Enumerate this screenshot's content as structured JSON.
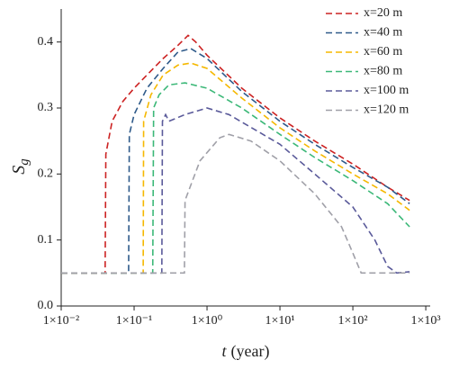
{
  "chart_data": {
    "type": "line",
    "ylabel": "S",
    "ylabel_subscript": "g",
    "xlabel_var": "t",
    "xlabel_unit": "(year)",
    "xscale": "log",
    "xlim": [
      0.01,
      1150
    ],
    "ylim": [
      0,
      0.45
    ],
    "xticks": [
      {
        "value": 0.01,
        "label": "1×10⁻²"
      },
      {
        "value": 0.1,
        "label": "1×10⁻¹"
      },
      {
        "value": 1,
        "label": "1×10⁰"
      },
      {
        "value": 10,
        "label": "1×10¹"
      },
      {
        "value": 100,
        "label": "1×10²"
      },
      {
        "value": 1000,
        "label": "1×10³"
      }
    ],
    "yticks": [
      {
        "value": 0,
        "label": "0.0"
      },
      0.1,
      0.2,
      0.3,
      0.4
    ],
    "legend": "top-right",
    "series": [
      {
        "name": "x=20 m",
        "color": "#cc2222",
        "x": [
          0.01,
          0.04,
          0.041,
          0.05,
          0.07,
          0.1,
          0.15,
          0.25,
          0.4,
          0.55,
          0.7,
          1,
          3,
          10,
          30,
          100,
          300,
          600
        ],
        "values": [
          0.05,
          0.05,
          0.23,
          0.28,
          0.31,
          0.33,
          0.35,
          0.375,
          0.395,
          0.41,
          0.4,
          0.38,
          0.33,
          0.285,
          0.25,
          0.215,
          0.18,
          0.16
        ]
      },
      {
        "name": "x=40 m",
        "color": "#2e5a8a",
        "x": [
          0.01,
          0.084,
          0.086,
          0.1,
          0.15,
          0.25,
          0.4,
          0.6,
          1,
          3,
          10,
          30,
          100,
          300,
          600
        ],
        "values": [
          0.05,
          0.05,
          0.26,
          0.29,
          0.33,
          0.36,
          0.385,
          0.39,
          0.375,
          0.325,
          0.28,
          0.245,
          0.21,
          0.18,
          0.155
        ]
      },
      {
        "name": "x=60 m",
        "color": "#f5b800",
        "x": [
          0.01,
          0.133,
          0.135,
          0.17,
          0.25,
          0.4,
          0.6,
          1,
          3,
          10,
          30,
          100,
          300,
          600
        ],
        "values": [
          0.05,
          0.05,
          0.28,
          0.32,
          0.35,
          0.365,
          0.368,
          0.36,
          0.315,
          0.27,
          0.235,
          0.2,
          0.17,
          0.145
        ]
      },
      {
        "name": "x=80 m",
        "color": "#3cb878",
        "x": [
          0.01,
          0.18,
          0.185,
          0.22,
          0.3,
          0.5,
          1,
          3,
          10,
          30,
          100,
          300,
          600
        ],
        "values": [
          0.05,
          0.05,
          0.3,
          0.32,
          0.335,
          0.338,
          0.33,
          0.3,
          0.26,
          0.225,
          0.19,
          0.155,
          0.12
        ]
      },
      {
        "name": "x=100 m",
        "color": "#5a5a9a",
        "x": [
          0.01,
          0.24,
          0.245,
          0.27,
          0.3,
          0.5,
          1,
          2,
          10,
          30,
          100,
          200,
          300,
          400,
          600
        ],
        "values": [
          0.05,
          0.05,
          0.28,
          0.29,
          0.28,
          0.29,
          0.3,
          0.29,
          0.245,
          0.2,
          0.15,
          0.1,
          0.06,
          0.05,
          0.052
        ]
      },
      {
        "name": "x=120 m",
        "color": "#a0a0a8",
        "x": [
          0.01,
          0.49,
          0.5,
          0.8,
          1.5,
          2,
          4,
          10,
          30,
          70,
          100,
          130,
          600
        ],
        "values": [
          0.05,
          0.05,
          0.16,
          0.22,
          0.255,
          0.26,
          0.25,
          0.22,
          0.17,
          0.12,
          0.08,
          0.05,
          0.05
        ]
      }
    ]
  }
}
